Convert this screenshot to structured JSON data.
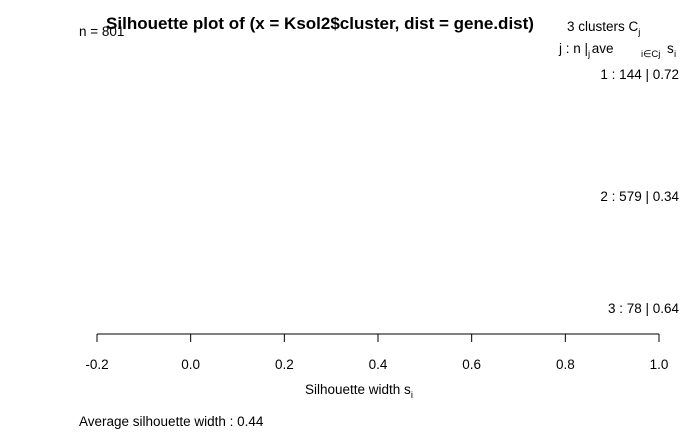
{
  "chart_data": {
    "type": "bar",
    "orientation": "horizontal",
    "title": "Silhouette plot of (x = Ksol2$cluster, dist = gene.dist)",
    "n_label": "n = 801",
    "clusters_header": "3  clusters  C",
    "clusters_header_sub": "j",
    "columns_header": "j :  n | ave",
    "columns_header_sub1": "j",
    "columns_header_sub2": "i∈Cj",
    "columns_header_tail": " s",
    "columns_header_sub3": "i",
    "clusters": [
      {
        "label": "1 :   144  |  0.72",
        "j": 1,
        "n": 144,
        "ave": 0.72
      },
      {
        "label": "2 :   579  |  0.34",
        "j": 2,
        "n": 579,
        "ave": 0.34
      },
      {
        "label": "3 :   78  |  0.64",
        "j": 3,
        "n": 78,
        "ave": 0.64
      }
    ],
    "xlabel": "Silhouette width s",
    "xlabel_sub": "i",
    "xlim": [
      -0.2,
      1.0
    ],
    "xticks": [
      -0.2,
      0.0,
      0.2,
      0.4,
      0.6,
      0.8,
      1.0
    ],
    "xtick_labels": [
      "-0.2",
      "0.0",
      "0.2",
      "0.4",
      "0.6",
      "0.8",
      "1.0"
    ],
    "footer": "Average silhouette width :  0.44"
  }
}
